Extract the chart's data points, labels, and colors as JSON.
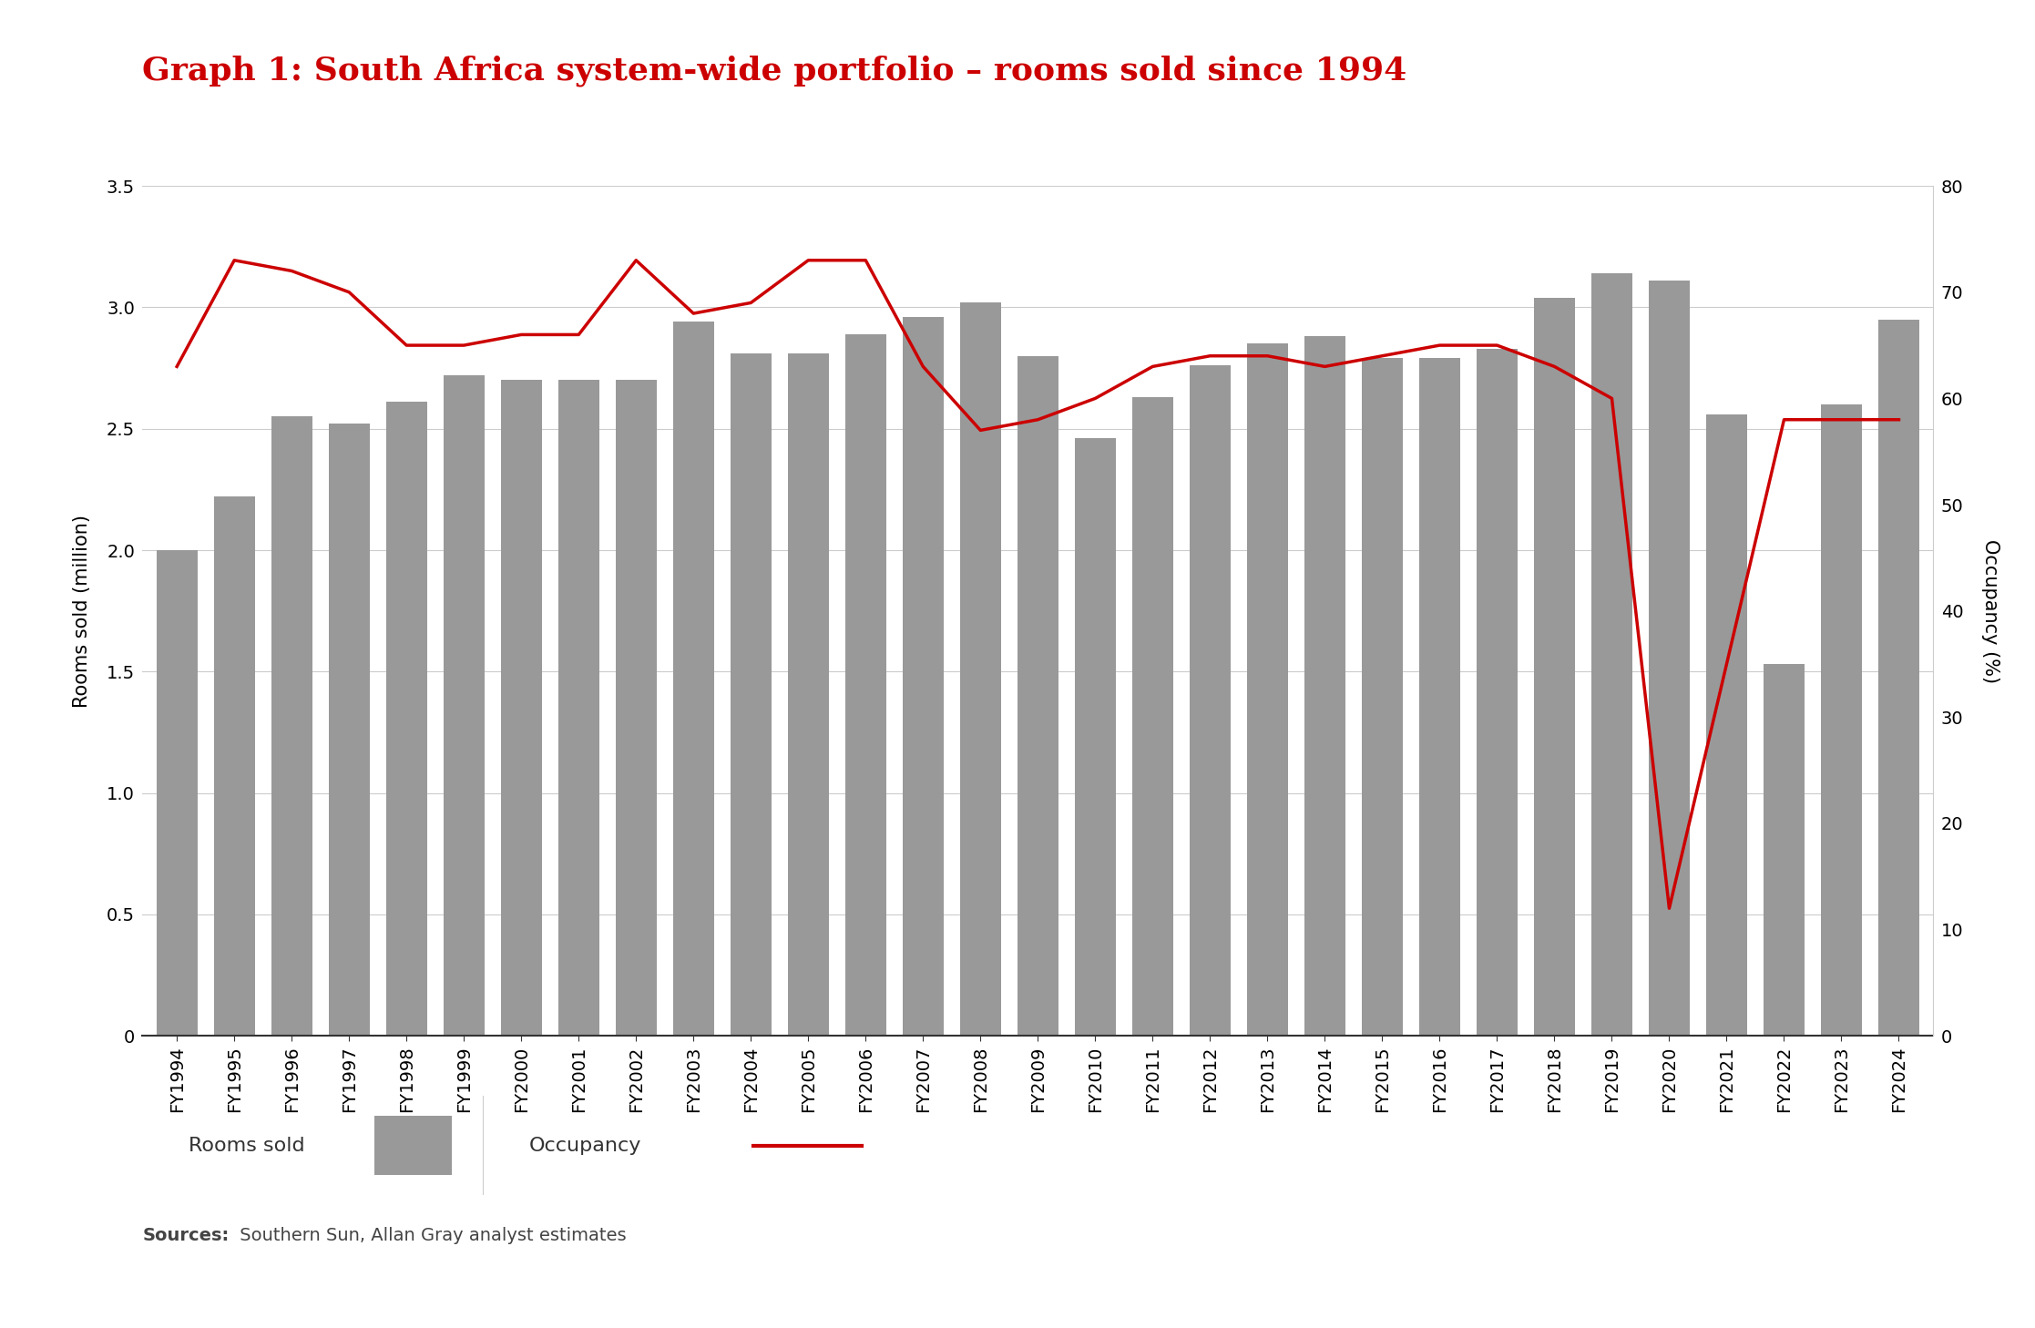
{
  "title": "Graph 1: South Africa system-wide portfolio – rooms sold since 1994",
  "title_color": "#cc0000",
  "background_color": "#ffffff",
  "years": [
    "FY1994",
    "FY1995",
    "FY1996",
    "FY1997",
    "FY1998",
    "FY1999",
    "FY2000",
    "FY2001",
    "FY2002",
    "FY2003",
    "FY2004",
    "FY2005",
    "FY2006",
    "FY2007",
    "FY2008",
    "FY2009",
    "FY2010",
    "FY2011",
    "FY2012",
    "FY2013",
    "FY2014",
    "FY2015",
    "FY2016",
    "FY2017",
    "FY2018",
    "FY2019",
    "FY2020",
    "FY2021",
    "FY2022",
    "FY2023",
    "FY2024"
  ],
  "rooms_sold": [
    2.0,
    2.22,
    2.55,
    2.52,
    2.61,
    2.72,
    2.7,
    2.7,
    2.7,
    2.94,
    2.81,
    2.81,
    2.89,
    2.96,
    3.02,
    2.8,
    2.46,
    2.63,
    2.76,
    2.85,
    2.88,
    2.79,
    2.79,
    2.83,
    3.04,
    3.14,
    3.11,
    2.56,
    1.53,
    2.6,
    2.95
  ],
  "occupancy": [
    63,
    73,
    72,
    70,
    65,
    65,
    66,
    66,
    73,
    68,
    69,
    73,
    73,
    63,
    57,
    58,
    60,
    63,
    64,
    64,
    63,
    64,
    65,
    65,
    63,
    60,
    12,
    35,
    58,
    58,
    58
  ],
  "bar_color": "#999999",
  "line_color": "#cc0000",
  "ylabel_left": "Rooms sold (million)",
  "ylabel_right": "Occupancy (%)",
  "ylim_left": [
    0,
    3.5
  ],
  "ylim_right": [
    0,
    80
  ],
  "yticks_left": [
    0,
    0.5,
    1.0,
    1.5,
    2.0,
    2.5,
    3.0,
    3.5
  ],
  "yticks_right": [
    0,
    10,
    20,
    30,
    40,
    50,
    60,
    70,
    80
  ],
  "grid_color": "#cccccc",
  "source_bold": "Sources:",
  "source_rest": " Southern Sun, Allan Gray analyst estimates",
  "legend_labels": [
    "Rooms sold",
    "Occupancy"
  ],
  "title_fontsize": 26,
  "axis_fontsize": 15,
  "tick_fontsize": 14,
  "legend_fontsize": 16,
  "source_fontsize": 14,
  "legend_bg": "#e8e8e8",
  "legend_edge": "#cccccc"
}
